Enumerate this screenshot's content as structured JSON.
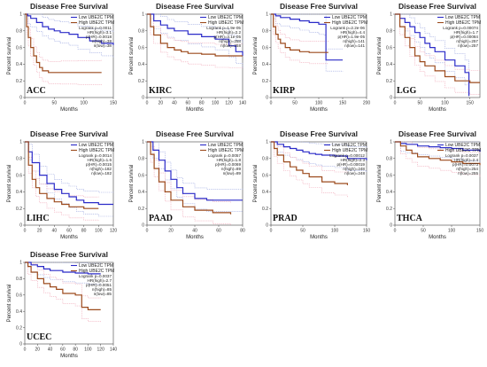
{
  "colors": {
    "low": "#2b2bc8",
    "high": "#9c4a1c",
    "low_ci": "#9aa6e0",
    "high_ci": "#f0a6b6",
    "axis": "#444444"
  },
  "chart_data": [
    {
      "type": "line",
      "title": "Disease Free Survival",
      "label": "ACC",
      "xlabel": "Months",
      "ylabel": "Percent survival",
      "xlim": [
        0,
        150
      ],
      "ylim": [
        0,
        1
      ],
      "xticks": [
        0,
        50,
        100,
        150
      ],
      "yticks": [
        0,
        0.2,
        0.4,
        0.6,
        0.8,
        1
      ],
      "legend": [
        "Low UBE2C TPM",
        "High UBE2C TPM"
      ],
      "stats": [
        "Logrank p=0.0011",
        "HR(high)=3.1",
        "p(HR)=0.0018",
        "n(high)=38",
        "n(low)=38"
      ],
      "series": [
        {
          "name": "Low UBE2C TPM",
          "x": [
            0,
            5,
            10,
            20,
            30,
            40,
            50,
            60,
            75,
            90,
            110,
            130,
            150
          ],
          "y": [
            1,
            0.98,
            0.95,
            0.9,
            0.85,
            0.82,
            0.8,
            0.78,
            0.76,
            0.72,
            0.68,
            0.65,
            0.63
          ]
        },
        {
          "name": "High UBE2C TPM",
          "x": [
            0,
            3,
            6,
            10,
            15,
            20,
            25,
            30,
            40,
            60,
            90,
            130
          ],
          "y": [
            1,
            0.85,
            0.72,
            0.6,
            0.5,
            0.42,
            0.36,
            0.32,
            0.3,
            0.3,
            0.3,
            0.3
          ]
        }
      ]
    },
    {
      "type": "line",
      "title": "Disease Free Survival",
      "label": "KIRC",
      "xlabel": "Months",
      "ylabel": "Percent survival",
      "xlim": [
        0,
        140
      ],
      "ylim": [
        0,
        1
      ],
      "xticks": [
        0,
        20,
        40,
        60,
        80,
        100,
        120,
        140
      ],
      "yticks": [
        0,
        0.2,
        0.4,
        0.6,
        0.8,
        1
      ],
      "legend": [
        "Low UBE2C TPM",
        "High UBE2C TPM"
      ],
      "stats": [
        "Logrank p=1.9e-05",
        "HR(high)=2.2",
        "p(HR)=3.1e-05",
        "n(high)=258",
        "n(low)=258"
      ],
      "series": [
        {
          "name": "Low UBE2C TPM",
          "x": [
            0,
            10,
            20,
            30,
            40,
            60,
            80,
            100,
            120,
            130,
            140
          ],
          "y": [
            1,
            0.92,
            0.87,
            0.83,
            0.8,
            0.76,
            0.73,
            0.7,
            0.62,
            0.55,
            0.5
          ]
        },
        {
          "name": "High UBE2C TPM",
          "x": [
            0,
            5,
            10,
            20,
            30,
            40,
            50,
            60,
            80,
            100,
            120,
            140
          ],
          "y": [
            1,
            0.85,
            0.75,
            0.65,
            0.6,
            0.57,
            0.55,
            0.53,
            0.52,
            0.5,
            0.5,
            0.5
          ]
        }
      ]
    },
    {
      "type": "line",
      "title": "Disease Free Survival",
      "label": "KIRP",
      "xlabel": "Months",
      "ylabel": "Percent survival",
      "xlim": [
        0,
        200
      ],
      "ylim": [
        0,
        1
      ],
      "xticks": [
        0,
        50,
        100,
        150,
        200
      ],
      "yticks": [
        0,
        0.2,
        0.4,
        0.6,
        0.8,
        1
      ],
      "legend": [
        "Low UBE2C TPM",
        "High UBE2C TPM"
      ],
      "stats": [
        "Logrank p=2.2e-06",
        "HR(high)=4.4",
        "p(HR)=1.9e-05",
        "n(high)=141",
        "n(low)=141"
      ],
      "series": [
        {
          "name": "Low UBE2C TPM",
          "x": [
            0,
            10,
            20,
            40,
            60,
            80,
            100,
            110,
            115,
            150
          ],
          "y": [
            1,
            0.98,
            0.96,
            0.94,
            0.92,
            0.9,
            0.88,
            0.88,
            0.45,
            0.45
          ]
        },
        {
          "name": "High UBE2C TPM",
          "x": [
            0,
            5,
            10,
            15,
            20,
            30,
            40,
            60,
            80,
            120
          ],
          "y": [
            1,
            0.85,
            0.76,
            0.7,
            0.65,
            0.6,
            0.57,
            0.55,
            0.54,
            0.54
          ]
        }
      ]
    },
    {
      "type": "line",
      "title": "Disease Free Survival",
      "label": "LGG",
      "xlabel": "Months",
      "ylabel": "Percent survival",
      "xlim": [
        0,
        170
      ],
      "ylim": [
        0,
        1
      ],
      "xticks": [
        0,
        50,
        100,
        150
      ],
      "yticks": [
        0,
        0.2,
        0.4,
        0.6,
        0.8,
        1
      ],
      "legend": [
        "Low UBE2C TPM",
        "High UBE2C TPM"
      ],
      "stats": [
        "Logrank p=0.00074",
        "HR(high)=1.7",
        "p(HR)=0.00084",
        "n(high)=257",
        "n(low)=257"
      ],
      "series": [
        {
          "name": "Low UBE2C TPM",
          "x": [
            0,
            10,
            20,
            30,
            40,
            50,
            60,
            70,
            80,
            100,
            120,
            140,
            148
          ],
          "y": [
            1,
            0.95,
            0.9,
            0.85,
            0.78,
            0.72,
            0.65,
            0.6,
            0.55,
            0.45,
            0.38,
            0.3,
            0.02
          ]
        },
        {
          "name": "High UBE2C TPM",
          "x": [
            0,
            10,
            20,
            30,
            40,
            50,
            60,
            80,
            100,
            120,
            150,
            170
          ],
          "y": [
            1,
            0.85,
            0.72,
            0.6,
            0.5,
            0.43,
            0.38,
            0.32,
            0.25,
            0.2,
            0.18,
            0.18
          ]
        }
      ]
    },
    {
      "type": "line",
      "title": "Disease Free Survival",
      "label": "LIHC",
      "xlabel": "Months",
      "ylabel": "Percent survival",
      "xlim": [
        0,
        120
      ],
      "ylim": [
        0,
        1
      ],
      "xticks": [
        0,
        20,
        40,
        60,
        80,
        100,
        120
      ],
      "yticks": [
        0,
        0.2,
        0.4,
        0.6,
        0.8,
        1
      ],
      "legend": [
        "Low UBE2C TPM",
        "High UBE2C TPM"
      ],
      "stats": [
        "Logrank p=0.0014",
        "HR(high)=1.6",
        "p(HR)=0.0015",
        "n(high)=182",
        "n(low)=182"
      ],
      "series": [
        {
          "name": "Low UBE2C TPM",
          "x": [
            0,
            5,
            10,
            20,
            30,
            40,
            50,
            60,
            70,
            80,
            100,
            120
          ],
          "y": [
            1,
            0.88,
            0.75,
            0.6,
            0.5,
            0.43,
            0.38,
            0.34,
            0.3,
            0.27,
            0.25,
            0.25
          ]
        },
        {
          "name": "High UBE2C TPM",
          "x": [
            0,
            5,
            10,
            15,
            20,
            30,
            40,
            50,
            60,
            80,
            100
          ],
          "y": [
            1,
            0.72,
            0.55,
            0.45,
            0.38,
            0.32,
            0.28,
            0.25,
            0.22,
            0.2,
            0.2
          ]
        }
      ]
    },
    {
      "type": "line",
      "title": "Disease Free Survival",
      "label": "PAAD",
      "xlabel": "Months",
      "ylabel": "Percent survival",
      "xlim": [
        0,
        80
      ],
      "ylim": [
        0,
        1
      ],
      "xticks": [
        0,
        20,
        40,
        60,
        80
      ],
      "yticks": [
        0,
        0.2,
        0.4,
        0.6,
        0.8,
        1
      ],
      "legend": [
        "Low UBE2C TPM",
        "High UBE2C TPM"
      ],
      "stats": [
        "Logrank p=0.0057",
        "HR(high)=1.8",
        "p(HR)=0.0069",
        "n(high)=89",
        "n(low)=89"
      ],
      "series": [
        {
          "name": "Low UBE2C TPM",
          "x": [
            0,
            5,
            10,
            15,
            20,
            25,
            30,
            40,
            50,
            80
          ],
          "y": [
            1,
            0.9,
            0.78,
            0.65,
            0.55,
            0.45,
            0.38,
            0.32,
            0.3,
            0.3
          ]
        },
        {
          "name": "High UBE2C TPM",
          "x": [
            0,
            3,
            6,
            10,
            15,
            20,
            30,
            40,
            55,
            70
          ],
          "y": [
            1,
            0.85,
            0.68,
            0.52,
            0.4,
            0.3,
            0.22,
            0.18,
            0.15,
            0.13
          ]
        }
      ]
    },
    {
      "type": "line",
      "title": "Disease Free Survival",
      "label": "PRAD",
      "xlabel": "Months",
      "ylabel": "Percent survival",
      "xlim": [
        0,
        150
      ],
      "ylim": [
        0,
        1
      ],
      "xticks": [
        0,
        50,
        100,
        150
      ],
      "yticks": [
        0,
        0.2,
        0.4,
        0.6,
        0.8,
        1
      ],
      "legend": [
        "Low UBE2C TPM",
        "High UBE2C TPM"
      ],
      "stats": [
        "Logrank p=0.00012",
        "HR(high)=2.3",
        "p(HR)=0.00019",
        "n(high)=248",
        "n(low)=248"
      ],
      "series": [
        {
          "name": "Low UBE2C TPM",
          "x": [
            0,
            10,
            20,
            30,
            40,
            50,
            60,
            70,
            80,
            100,
            120,
            150
          ],
          "y": [
            1,
            0.97,
            0.94,
            0.92,
            0.9,
            0.88,
            0.86,
            0.85,
            0.84,
            0.83,
            0.8,
            0.78
          ]
        },
        {
          "name": "High UBE2C TPM",
          "x": [
            0,
            5,
            10,
            20,
            30,
            40,
            50,
            60,
            80,
            100,
            120
          ],
          "y": [
            1,
            0.92,
            0.84,
            0.76,
            0.7,
            0.66,
            0.62,
            0.58,
            0.52,
            0.5,
            0.48
          ]
        }
      ]
    },
    {
      "type": "line",
      "title": "Disease Free Survival",
      "label": "THCA",
      "xlabel": "Months",
      "ylabel": "Percent survival",
      "xlim": [
        0,
        150
      ],
      "ylim": [
        0,
        1
      ],
      "xticks": [
        0,
        50,
        100,
        150
      ],
      "yticks": [
        0,
        0.2,
        0.4,
        0.6,
        0.8,
        1
      ],
      "legend": [
        "Low UBE2C TPM",
        "High UBE2C TPM"
      ],
      "stats": [
        "Logrank p=0.0037",
        "HR(high)=2.4",
        "p(HR)=0.0073",
        "n(high)=254",
        "n(low)=255"
      ],
      "series": [
        {
          "name": "Low UBE2C TPM",
          "x": [
            0,
            10,
            20,
            40,
            60,
            80,
            100,
            120,
            150
          ],
          "y": [
            1,
            0.98,
            0.97,
            0.95,
            0.94,
            0.93,
            0.92,
            0.9,
            0.88
          ]
        },
        {
          "name": "High UBE2C TPM",
          "x": [
            0,
            10,
            20,
            30,
            40,
            60,
            80,
            100,
            120,
            150
          ],
          "y": [
            1,
            0.95,
            0.9,
            0.86,
            0.82,
            0.8,
            0.78,
            0.76,
            0.74,
            0.72
          ]
        }
      ]
    },
    {
      "type": "line",
      "title": "Disease Free Survival",
      "label": "UCEC",
      "xlabel": "Months",
      "ylabel": "Percent survival",
      "xlim": [
        0,
        140
      ],
      "ylim": [
        0,
        1
      ],
      "xticks": [
        0,
        20,
        40,
        60,
        80,
        100,
        120,
        140
      ],
      "yticks": [
        0,
        0.2,
        0.4,
        0.6,
        0.8,
        1
      ],
      "legend": [
        "Low UBE2C TPM",
        "High UBE2C TPM"
      ],
      "stats": [
        "Logrank p=0.0037",
        "HR(high)=2.7",
        "p(HR)=0.0051",
        "n(high)=85",
        "n(low)=85"
      ],
      "series": [
        {
          "name": "Low UBE2C TPM",
          "x": [
            0,
            10,
            20,
            30,
            40,
            60,
            80,
            100,
            120
          ],
          "y": [
            1,
            0.97,
            0.95,
            0.92,
            0.9,
            0.88,
            0.87,
            0.86,
            0.86
          ]
        },
        {
          "name": "High UBE2C TPM",
          "x": [
            0,
            5,
            10,
            20,
            30,
            40,
            50,
            60,
            80,
            90,
            100,
            120
          ],
          "y": [
            1,
            0.95,
            0.88,
            0.8,
            0.74,
            0.7,
            0.67,
            0.62,
            0.6,
            0.45,
            0.42,
            0.42
          ]
        }
      ]
    }
  ]
}
